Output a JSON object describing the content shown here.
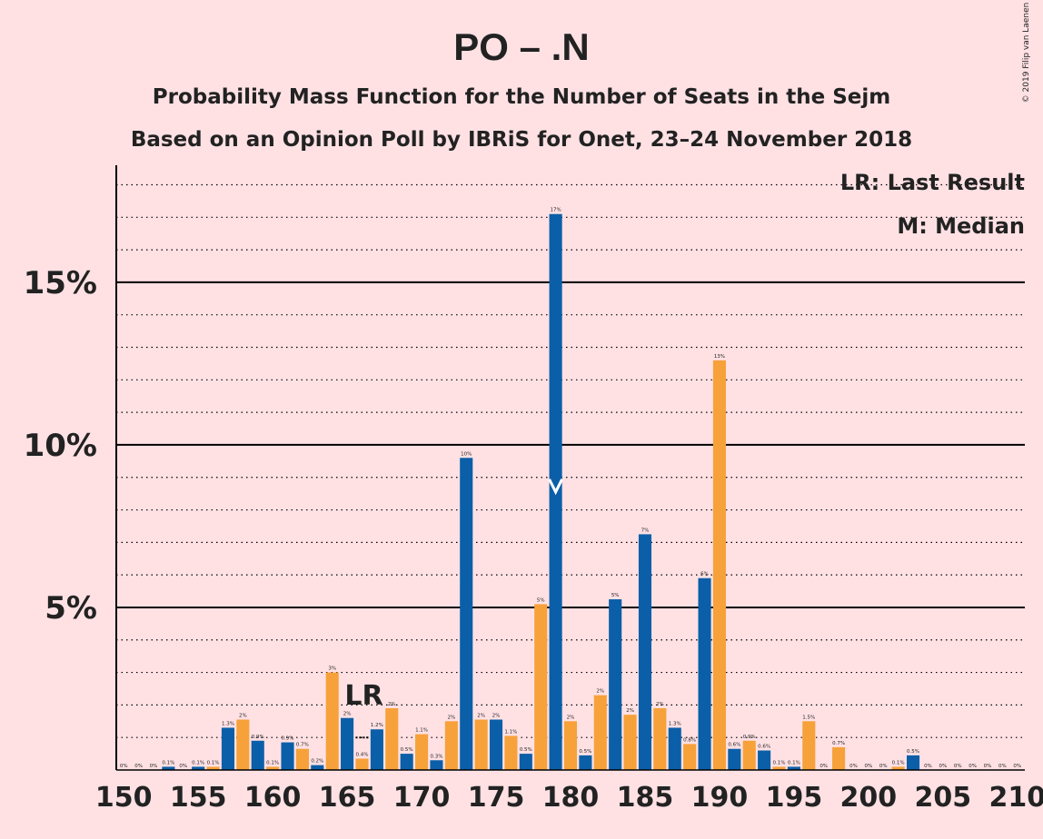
{
  "chart_data": {
    "type": "bar",
    "title": "PO – .N",
    "subtitle1": "Probability Mass Function for the Number of Seats in the Sejm",
    "subtitle2": "Based on an Opinion Poll by IBRiS for Onet, 23–24 November 2018",
    "copyright": "© 2019 Filip van Laenen",
    "legend_lr": "LR: Last Result",
    "legend_m": "M: Median",
    "lr_label": "LR",
    "last_result_seat": 166,
    "median_seat": 179,
    "xlim": [
      150,
      210
    ],
    "ylim": [
      0,
      18.6
    ],
    "x_ticks": [
      150,
      155,
      160,
      165,
      170,
      175,
      180,
      185,
      190,
      195,
      200,
      205,
      210
    ],
    "y_ticks": [
      {
        "value": 5,
        "label": "5%"
      },
      {
        "value": 10,
        "label": "10%"
      },
      {
        "value": 15,
        "label": "15%"
      }
    ],
    "grid": "dotted lines every 1%, solid lines every 5%",
    "colors": {
      "even_seats": "#f7a13a",
      "odd_seats": "#0a5fa8",
      "background": "#ffe1e4"
    },
    "seats": [
      150,
      151,
      152,
      153,
      154,
      155,
      156,
      157,
      158,
      159,
      160,
      161,
      162,
      163,
      164,
      165,
      166,
      167,
      168,
      169,
      170,
      171,
      172,
      173,
      174,
      175,
      176,
      177,
      178,
      179,
      180,
      181,
      182,
      183,
      184,
      185,
      186,
      187,
      188,
      189,
      190,
      191,
      192,
      193,
      194,
      195,
      196,
      197,
      198,
      199,
      200,
      201,
      202,
      203,
      204,
      205,
      206,
      207,
      208,
      209,
      210
    ],
    "values": [
      0,
      0,
      0,
      0.1,
      0,
      0.1,
      0.1,
      1.3,
      1.55,
      0.9,
      0.1,
      0.85,
      0.65,
      0.15,
      3,
      1.6,
      0.35,
      1.25,
      1.9,
      0.5,
      1.1,
      0.3,
      1.5,
      9.6,
      1.55,
      1.55,
      1.05,
      0.5,
      5.1,
      17.1,
      1.5,
      0.45,
      2.3,
      5.25,
      1.7,
      7.25,
      1.9,
      1.3,
      0.8,
      5.9,
      12.6,
      0.65,
      0.9,
      0.6,
      0.1,
      0.1,
      1.5,
      0,
      0.7,
      0,
      0,
      0,
      0.1,
      0.45,
      0,
      0,
      0,
      0,
      0,
      0,
      0
    ],
    "data_labels": [
      "0%",
      "0%",
      "0%",
      "0.1%",
      "0%",
      "0.1%",
      "0.1%",
      "1.3%",
      "2%",
      "0.9%",
      "0.1%",
      "0.9%",
      "0.7%",
      "0.2%",
      "3%",
      "2%",
      "0.4%",
      "1.2%",
      "2%",
      "0.5%",
      "1.1%",
      "0.3%",
      "2%",
      "10%",
      "2%",
      "2%",
      "1.1%",
      "0.5%",
      "5%",
      "17%",
      "2%",
      "0.5%",
      "2%",
      "5%",
      "2%",
      "7%",
      "2%",
      "1.3%",
      "0.8%",
      "6%",
      "13%",
      "0.6%",
      "0.9%",
      "0.6%",
      "0.1%",
      "0.1%",
      "1.5%",
      "0%",
      "0.7%",
      "0%",
      "0%",
      "0%",
      "0.1%",
      "0.5%",
      "0%",
      "0%",
      "0%",
      "0%",
      "0%",
      "0%",
      "0%"
    ]
  }
}
